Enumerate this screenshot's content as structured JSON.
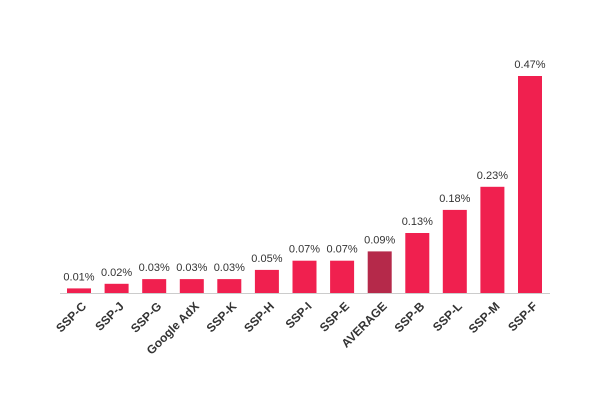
{
  "chart_data": {
    "type": "bar",
    "categories": [
      "SSP-C",
      "SSP-J",
      "SSP-G",
      "Google AdX",
      "SSP-K",
      "SSP-H",
      "SSP-I",
      "SSP-E",
      "AVERAGE",
      "SSP-B",
      "SSP-L",
      "SSP-M",
      "SSP-F"
    ],
    "values": [
      0.01,
      0.02,
      0.03,
      0.03,
      0.03,
      0.05,
      0.07,
      0.07,
      0.09,
      0.13,
      0.18,
      0.23,
      0.47
    ],
    "value_labels": [
      "0.01%",
      "0.02%",
      "0.03%",
      "0.03%",
      "0.03%",
      "0.05%",
      "0.07%",
      "0.07%",
      "0.09%",
      "0.13%",
      "0.18%",
      "0.23%",
      "0.47%"
    ],
    "highlight_category": "AVERAGE",
    "ylim": [
      0,
      0.47
    ],
    "grid": false,
    "legend": "none",
    "colors": {
      "bar": "#F0204F",
      "highlight": "#B5294A",
      "baseline": "#cccccc"
    }
  }
}
